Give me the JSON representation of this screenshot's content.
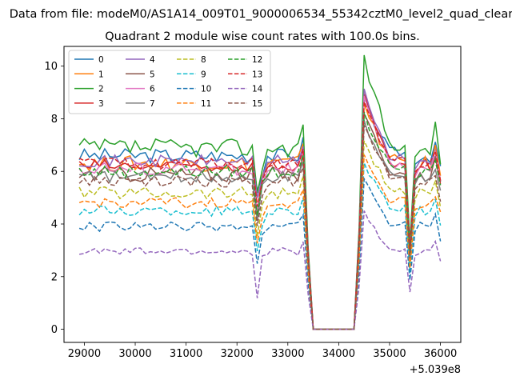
{
  "chart_data": {
    "type": "line",
    "suptitle": "Data from file: modeM0/AS1A14_009T01_9000006534_55342cztM0_level2_quad_clean.evt",
    "title": "Quadrant 2 module wise count rates with 100.0s bins.",
    "xlabel": "",
    "ylabel": "",
    "x_offset_label": "+5.039e8",
    "xlim": [
      28600,
      36400
    ],
    "ylim": [
      -0.5,
      10.75
    ],
    "x_ticks": [
      29000,
      30000,
      31000,
      32000,
      33000,
      34000,
      35000,
      36000
    ],
    "x_tick_labels": [
      "29000",
      "30000",
      "31000",
      "32000",
      "33000",
      "34000",
      "35000",
      "36000"
    ],
    "y_ticks": [
      0,
      2,
      4,
      6,
      8,
      10
    ],
    "y_tick_labels": [
      "0",
      "2",
      "4",
      "6",
      "8",
      "10"
    ],
    "grid": false,
    "legend_position": "upper-left",
    "x_start": 28900,
    "x_step": 100,
    "series": [
      {
        "name": "0",
        "color": "#1f77b4",
        "dash": "solid",
        "mean": 6.6,
        "amp": 0.28,
        "peak": 8.6,
        "dipScale": 0.8
      },
      {
        "name": "1",
        "color": "#ff7f0e",
        "dash": "solid",
        "mean": 6.3,
        "amp": 0.3,
        "peak": 8.4,
        "dipScale": 0.7
      },
      {
        "name": "2",
        "color": "#2ca02c",
        "dash": "solid",
        "mean": 6.9,
        "amp": 0.35,
        "peak": 10.2,
        "dipScale": 0.75
      },
      {
        "name": "3",
        "color": "#d62728",
        "dash": "solid",
        "mean": 6.2,
        "amp": 0.25,
        "peak": 8.8,
        "dipScale": 0.72
      },
      {
        "name": "4",
        "color": "#9467bd",
        "dash": "solid",
        "mean": 6.4,
        "amp": 0.22,
        "peak": 9.0,
        "dipScale": 0.78
      },
      {
        "name": "5",
        "color": "#8c564b",
        "dash": "solid",
        "mean": 5.9,
        "amp": 0.3,
        "peak": 8.0,
        "dipScale": 0.7
      },
      {
        "name": "6",
        "color": "#e377c2",
        "dash": "solid",
        "mean": 6.1,
        "amp": 0.25,
        "peak": 8.7,
        "dipScale": 0.74
      },
      {
        "name": "7",
        "color": "#7f7f7f",
        "dash": "solid",
        "mean": 5.8,
        "amp": 0.22,
        "peak": 7.8,
        "dipScale": 0.72
      },
      {
        "name": "8",
        "color": "#bcbd22",
        "dash": "dashed",
        "mean": 5.2,
        "amp": 0.25,
        "peak": 7.0,
        "dipScale": 0.68
      },
      {
        "name": "9",
        "color": "#17becf",
        "dash": "dashed",
        "mean": 4.5,
        "amp": 0.2,
        "peak": 6.2,
        "dipScale": 0.66
      },
      {
        "name": "10",
        "color": "#1f77b4",
        "dash": "dashed",
        "mean": 3.9,
        "amp": 0.18,
        "peak": 5.6,
        "dipScale": 0.64
      },
      {
        "name": "11",
        "color": "#ff7f0e",
        "dash": "dashed",
        "mean": 4.8,
        "amp": 0.2,
        "peak": 6.5,
        "dipScale": 0.68
      },
      {
        "name": "12",
        "color": "#2ca02c",
        "dash": "dashed",
        "mean": 6.0,
        "amp": 0.25,
        "peak": 8.1,
        "dipScale": 0.72
      },
      {
        "name": "13",
        "color": "#d62728",
        "dash": "dashed",
        "mean": 6.3,
        "amp": 0.22,
        "peak": 8.5,
        "dipScale": 0.74
      },
      {
        "name": "14",
        "color": "#9467bd",
        "dash": "dashed",
        "mean": 2.95,
        "amp": 0.15,
        "peak": 4.4,
        "dipScale": 0.4
      },
      {
        "name": "15",
        "color": "#8c564b",
        "dash": "dashed",
        "mean": 5.6,
        "amp": 0.22,
        "peak": 7.6,
        "dipScale": 0.7
      }
    ]
  }
}
